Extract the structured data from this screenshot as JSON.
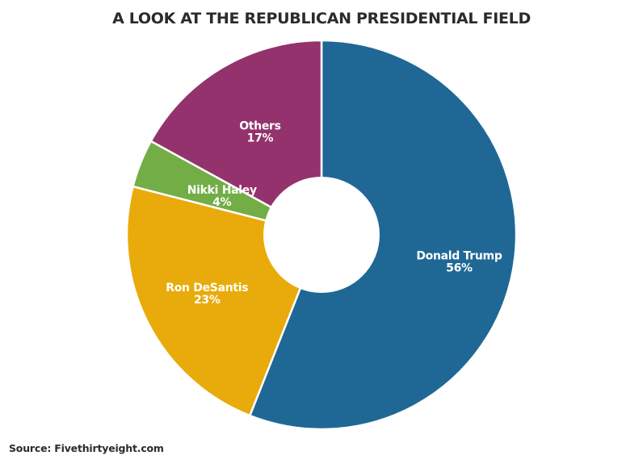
{
  "chart_data": {
    "type": "pie",
    "variant": "donut",
    "title": "A LOOK AT THE REPUBLICAN PRESIDENTIAL FIELD",
    "source": "Source: Fivethirtyeight.com",
    "start": "top",
    "direction": "clockwise",
    "slices": [
      {
        "label": "Donald Trump",
        "value": 56,
        "display": "56%",
        "color": "#1f6895"
      },
      {
        "label": "Ron DeSantis",
        "value": 23,
        "display": "23%",
        "color": "#e9ab0b"
      },
      {
        "label": "Nikki Haley",
        "value": 4,
        "display": "4%",
        "color": "#72ad46"
      },
      {
        "label": "Others",
        "value": 17,
        "display": "17%",
        "color": "#93326d"
      }
    ]
  }
}
